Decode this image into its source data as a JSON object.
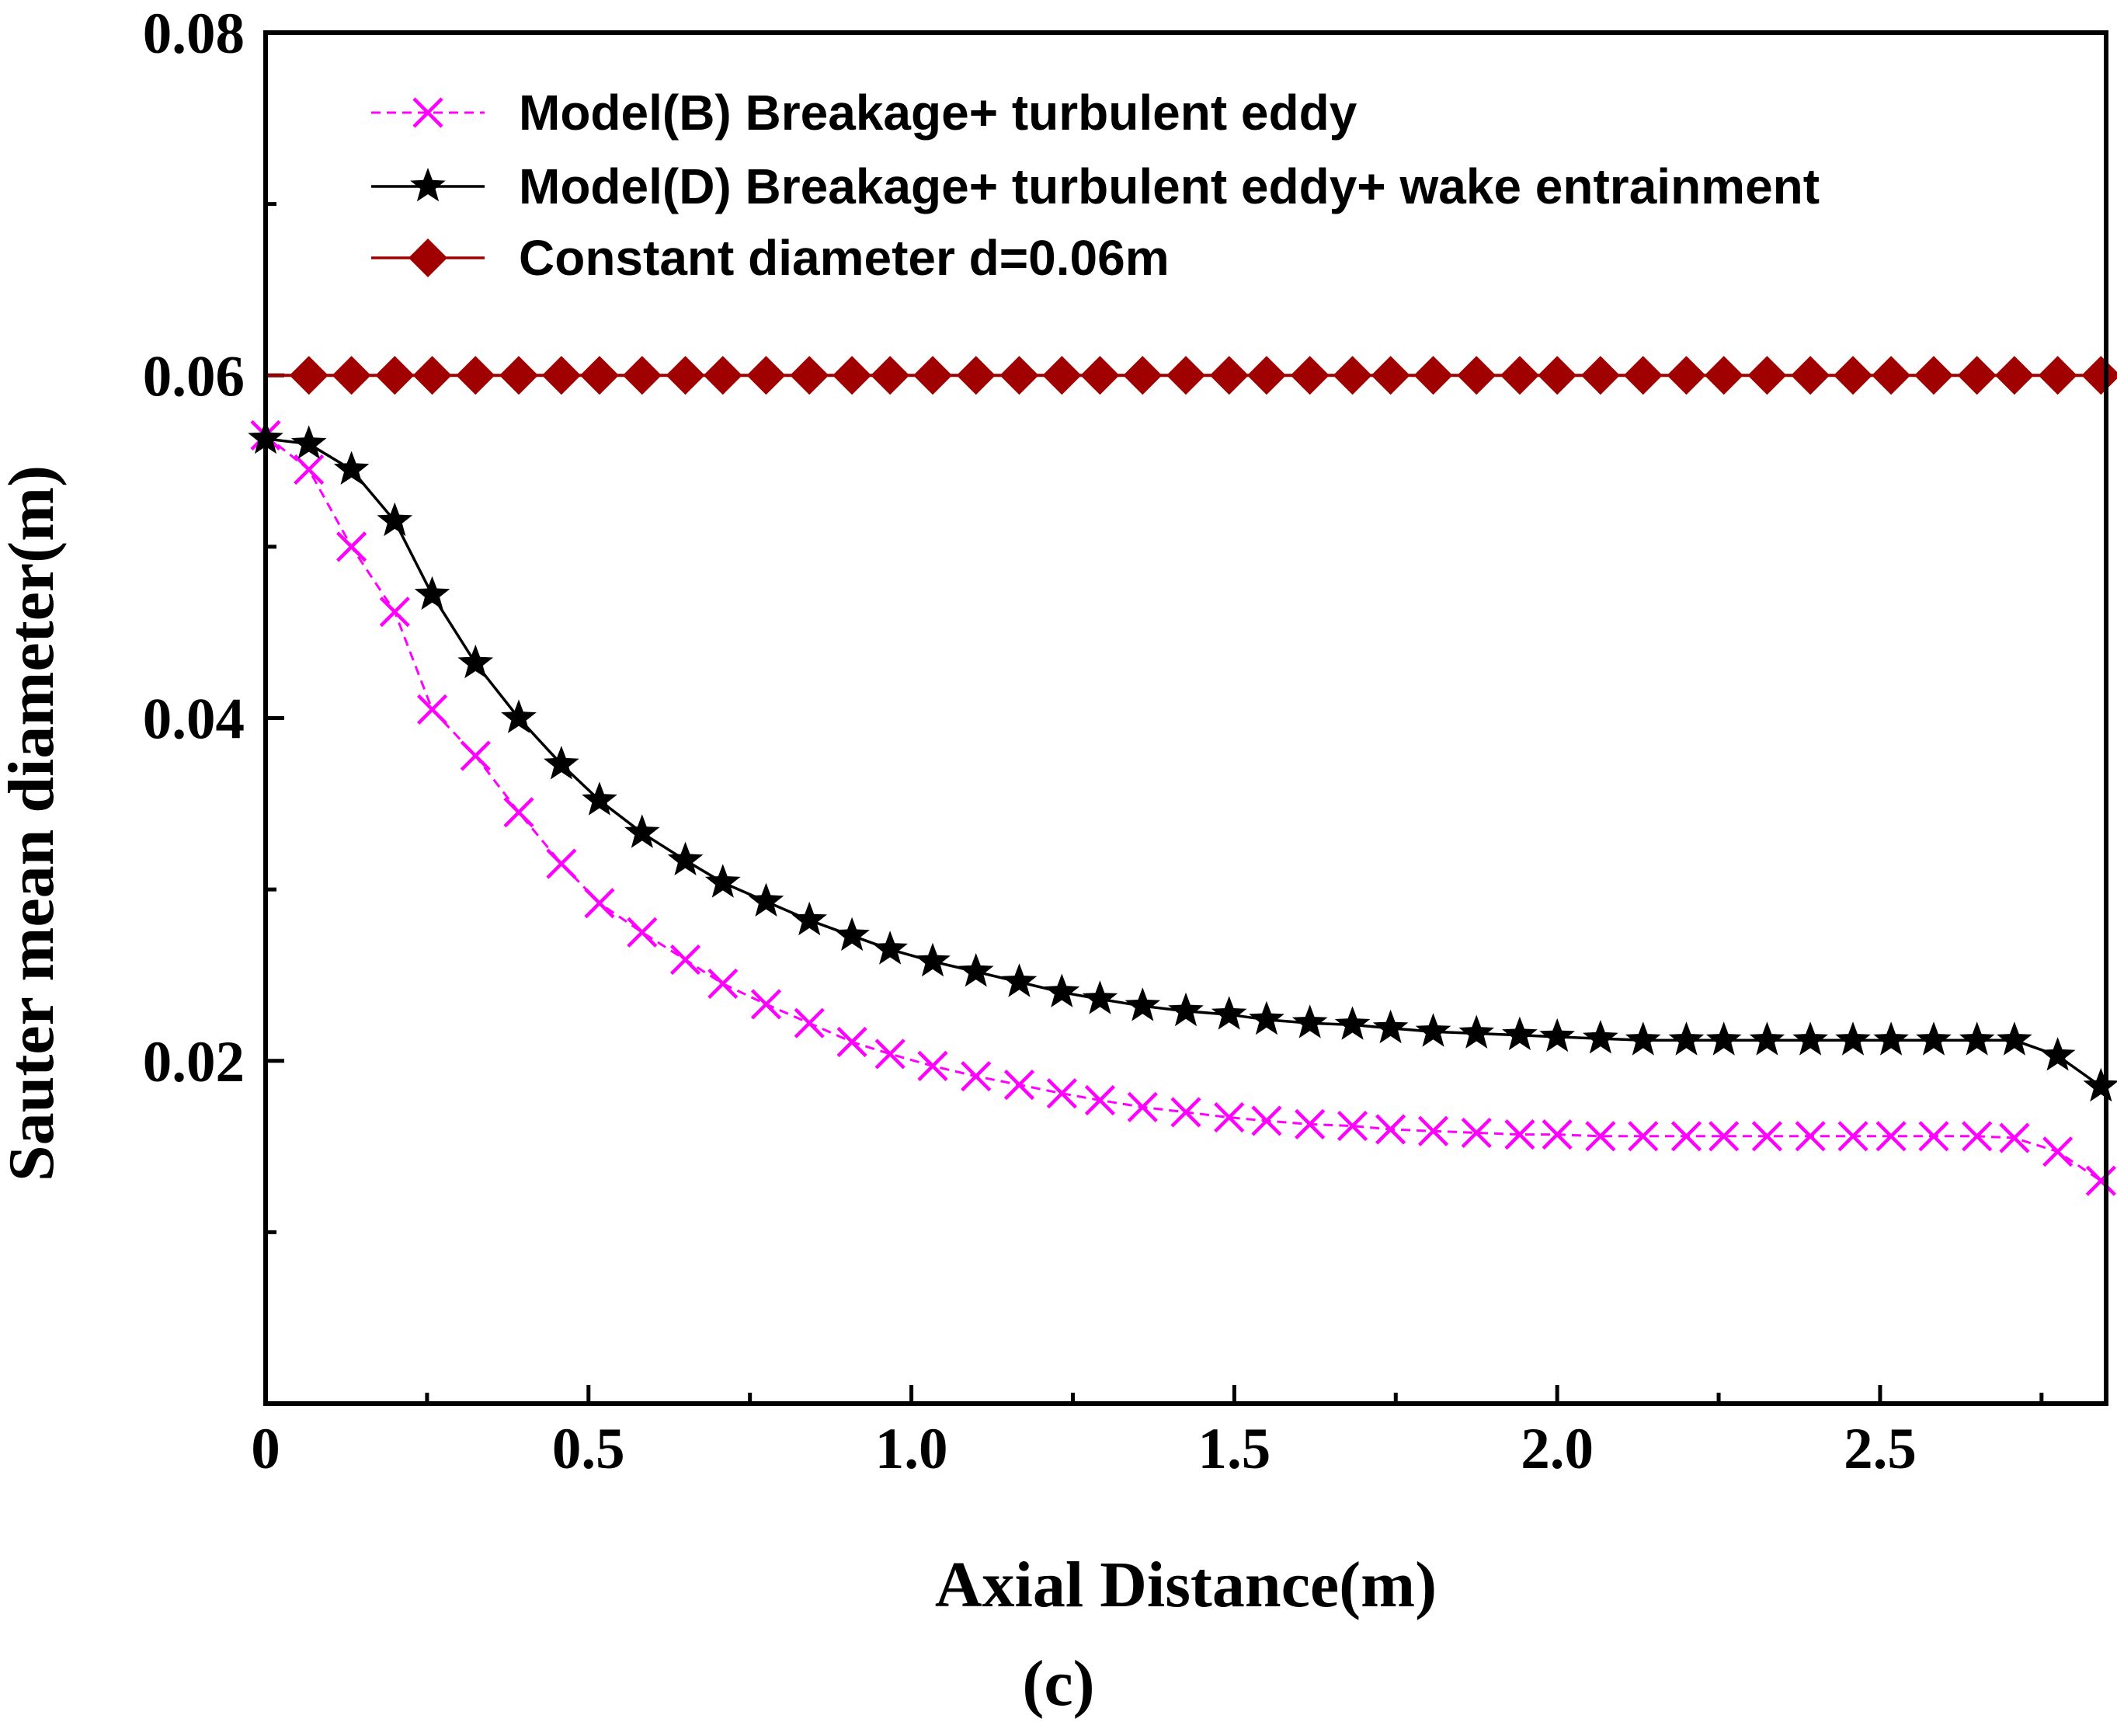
{
  "chart_data": {
    "type": "line",
    "xlabel": "Axial Distance(m)",
    "ylabel": "Sauter mean diameter(m)",
    "caption": "(c)",
    "xlim": [
      0,
      2.85
    ],
    "ylim": [
      0.0,
      0.08
    ],
    "xticks": [
      0,
      0.5,
      1.0,
      1.5,
      2.0,
      2.5
    ],
    "xtick_labels": [
      "0",
      "0.5",
      "1.0",
      "1.5",
      "2.0",
      "2.5"
    ],
    "yticks": [
      0.02,
      0.04,
      0.06,
      0.08
    ],
    "ytick_labels": [
      "0.02",
      "0.04",
      "0.06",
      "0.08"
    ],
    "legend_position": "top-left",
    "series": [
      {
        "name": "Model(B) Breakage+ turbulent eddy",
        "color": "#ff00ff",
        "line": "dashed",
        "marker": "x",
        "x": [
          0,
          0.067,
          0.133,
          0.2,
          0.258,
          0.325,
          0.392,
          0.458,
          0.517,
          0.583,
          0.65,
          0.708,
          0.775,
          0.842,
          0.908,
          0.967,
          1.033,
          1.1,
          1.167,
          1.233,
          1.292,
          1.358,
          1.425,
          1.492,
          1.55,
          1.617,
          1.683,
          1.742,
          1.808,
          1.875,
          1.942,
          2.0,
          2.067,
          2.133,
          2.2,
          2.258,
          2.325,
          2.392,
          2.458,
          2.517,
          2.583,
          2.65,
          2.708,
          2.775,
          2.842
        ],
        "y": [
          0.0565,
          0.0545,
          0.05,
          0.0462,
          0.0405,
          0.0378,
          0.0345,
          0.0315,
          0.0292,
          0.0275,
          0.0259,
          0.0245,
          0.0233,
          0.0222,
          0.0211,
          0.0204,
          0.0197,
          0.0191,
          0.0186,
          0.0181,
          0.0177,
          0.0173,
          0.017,
          0.0167,
          0.0165,
          0.0163,
          0.0162,
          0.016,
          0.0159,
          0.0158,
          0.0157,
          0.0157,
          0.0156,
          0.0156,
          0.0156,
          0.0156,
          0.0156,
          0.0156,
          0.0156,
          0.0156,
          0.0156,
          0.0156,
          0.0155,
          0.0147,
          0.013
        ]
      },
      {
        "name": "Model(D) Breakage+ turbulent eddy+ wake entrainment",
        "color": "#000000",
        "line": "solid",
        "marker": "star",
        "x": [
          0,
          0.067,
          0.133,
          0.2,
          0.258,
          0.325,
          0.392,
          0.458,
          0.517,
          0.583,
          0.65,
          0.708,
          0.775,
          0.842,
          0.908,
          0.967,
          1.033,
          1.1,
          1.167,
          1.233,
          1.292,
          1.358,
          1.425,
          1.492,
          1.55,
          1.617,
          1.683,
          1.742,
          1.808,
          1.875,
          1.942,
          2.0,
          2.067,
          2.133,
          2.2,
          2.258,
          2.325,
          2.392,
          2.458,
          2.517,
          2.583,
          2.65,
          2.708,
          2.775,
          2.842
        ],
        "y": [
          0.0563,
          0.056,
          0.0545,
          0.0515,
          0.0472,
          0.0432,
          0.04,
          0.0373,
          0.0352,
          0.0333,
          0.0317,
          0.0304,
          0.0293,
          0.0282,
          0.0273,
          0.0265,
          0.0258,
          0.0252,
          0.0246,
          0.024,
          0.0236,
          0.0232,
          0.0229,
          0.0227,
          0.0224,
          0.0222,
          0.0221,
          0.0219,
          0.0217,
          0.0216,
          0.0215,
          0.0214,
          0.0213,
          0.0212,
          0.0212,
          0.0212,
          0.0212,
          0.0212,
          0.0212,
          0.0212,
          0.0212,
          0.0212,
          0.0212,
          0.0203,
          0.0185
        ]
      },
      {
        "name": "Constant diameter d=0.06m",
        "color": "#a00000",
        "line": "solid",
        "marker": "diamond",
        "x": [
          0.067,
          0.133,
          0.2,
          0.258,
          0.325,
          0.392,
          0.458,
          0.517,
          0.583,
          0.65,
          0.708,
          0.775,
          0.842,
          0.908,
          0.967,
          1.033,
          1.1,
          1.167,
          1.233,
          1.292,
          1.358,
          1.425,
          1.492,
          1.55,
          1.617,
          1.683,
          1.742,
          1.808,
          1.875,
          1.942,
          2.0,
          2.067,
          2.133,
          2.2,
          2.258,
          2.325,
          2.392,
          2.458,
          2.517,
          2.583,
          2.65,
          2.708,
          2.775,
          2.842
        ],
        "y": [
          0.06,
          0.06,
          0.06,
          0.06,
          0.06,
          0.06,
          0.06,
          0.06,
          0.06,
          0.06,
          0.06,
          0.06,
          0.06,
          0.06,
          0.06,
          0.06,
          0.06,
          0.06,
          0.06,
          0.06,
          0.06,
          0.06,
          0.06,
          0.06,
          0.06,
          0.06,
          0.06,
          0.06,
          0.06,
          0.06,
          0.06,
          0.06,
          0.06,
          0.06,
          0.06,
          0.06,
          0.06,
          0.06,
          0.06,
          0.06,
          0.06,
          0.06,
          0.06,
          0.06
        ]
      }
    ]
  }
}
